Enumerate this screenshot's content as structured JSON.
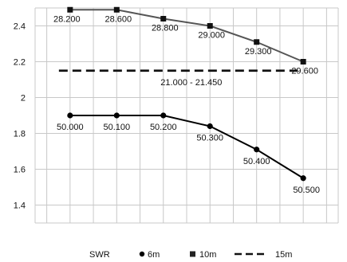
{
  "chart_data": {
    "type": "line",
    "title": "",
    "xlabel": "",
    "ylabel": "",
    "x": [
      1,
      2,
      3,
      4,
      5,
      6
    ],
    "xlim": [
      0.25,
      6.75
    ],
    "ylim": [
      1.3,
      2.5
    ],
    "yticks": [
      1.4,
      1.6,
      1.8,
      2,
      2.2,
      2.4
    ],
    "ytick_labels": [
      "1.4",
      "1.6",
      "1.8",
      "2",
      "2.2",
      "2.4"
    ],
    "grid": true,
    "legend": {
      "position": "bottom",
      "title": "SWR",
      "entries": [
        {
          "label": "6m",
          "marker": "circle"
        },
        {
          "label": "10m",
          "marker": "square"
        },
        {
          "label": "15m",
          "marker": "dash"
        }
      ]
    },
    "series": [
      {
        "name": "6m",
        "color": "#000000",
        "marker": "circle",
        "values": [
          1.9,
          1.9,
          1.9,
          1.84,
          1.71,
          1.55
        ],
        "labels": [
          "50.000",
          "50.100",
          "50.200",
          "50.300",
          "50.400",
          "50.500"
        ]
      },
      {
        "name": "10m",
        "color": "#555555",
        "marker": "square",
        "values": [
          2.49,
          2.49,
          2.44,
          2.4,
          2.31,
          2.2
        ],
        "labels": [
          "28.200",
          "28.600",
          "28.800",
          "29.000",
          "29.300",
          "29.600"
        ]
      },
      {
        "name": "15m",
        "color": "#111111",
        "style": "dashed",
        "x_range": [
          1,
          6
        ],
        "value": 2.15,
        "label": "21.000 - 21.450"
      }
    ]
  }
}
